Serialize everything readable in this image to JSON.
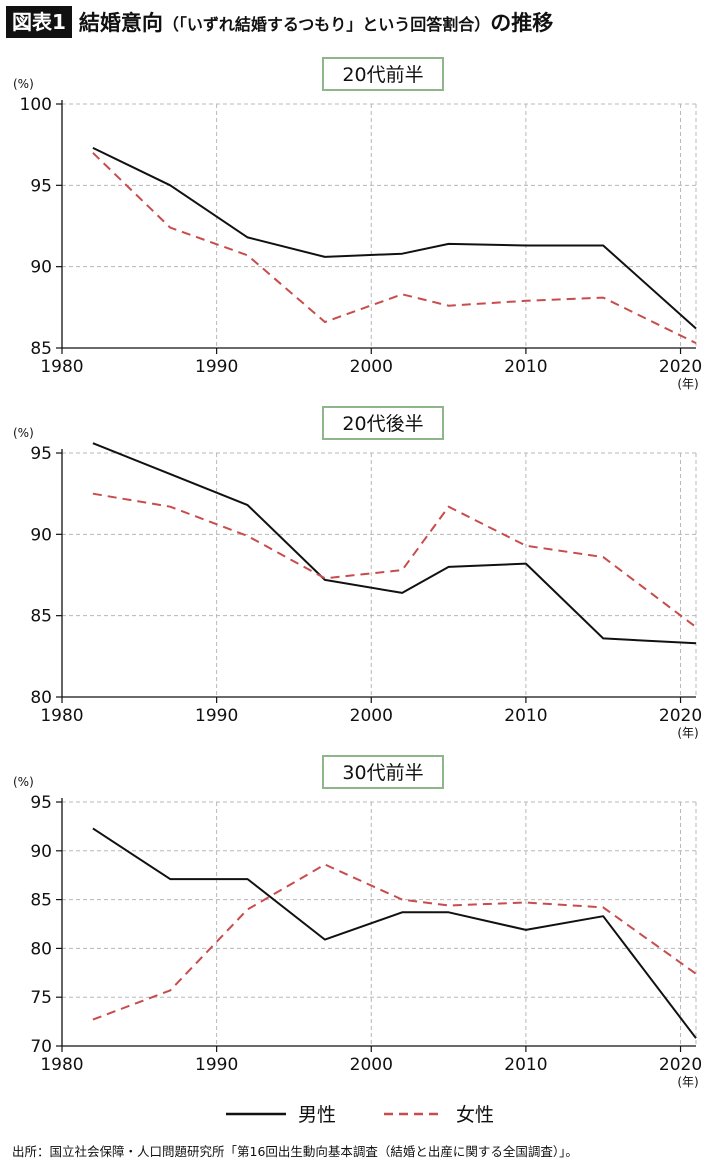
{
  "header": {
    "badge": "図表1",
    "title": "結婚意向",
    "subtitle": "（「いずれ結婚するつもり」という回答割合）",
    "title_suffix": "の推移"
  },
  "legend": {
    "male": "男性",
    "female": "女性"
  },
  "source": "出所：国立社会保障・人口問題研究所「第16回出生動向基本調査（結婚と出産に関する全国調査）」。",
  "colors": {
    "male": "#111111",
    "female": "#c84c4c",
    "grid": "#b8b8b8",
    "title_border": "#8fb58a"
  },
  "chart_data": [
    {
      "type": "line",
      "title": "20代前半",
      "y_unit": "(%)",
      "x_unit": "(年)",
      "xlim": [
        1980,
        2021
      ],
      "x_ticks": [
        1980,
        1990,
        2000,
        2010,
        2020
      ],
      "ylim": [
        85,
        100
      ],
      "y_ticks": [
        85,
        90,
        95,
        100
      ],
      "grid": true,
      "x": [
        1982,
        1987,
        1992,
        1997,
        2002,
        2005,
        2010,
        2015,
        2021
      ],
      "series": [
        {
          "name": "男性",
          "values": [
            97.3,
            95.0,
            91.8,
            90.6,
            90.8,
            91.4,
            91.3,
            91.3,
            86.2
          ]
        },
        {
          "name": "女性",
          "values": [
            97.0,
            92.4,
            90.7,
            86.6,
            88.3,
            87.6,
            87.9,
            88.1,
            85.3
          ]
        }
      ]
    },
    {
      "type": "line",
      "title": "20代後半",
      "y_unit": "(%)",
      "x_unit": "(年)",
      "xlim": [
        1980,
        2021
      ],
      "x_ticks": [
        1980,
        1990,
        2000,
        2010,
        2020
      ],
      "ylim": [
        80,
        95
      ],
      "y_ticks": [
        80,
        85,
        90,
        95
      ],
      "grid": true,
      "x": [
        1982,
        1987,
        1992,
        1997,
        2002,
        2005,
        2010,
        2015,
        2021
      ],
      "series": [
        {
          "name": "男性",
          "values": [
            95.6,
            93.7,
            91.8,
            87.2,
            86.4,
            88.0,
            88.2,
            83.6,
            83.3
          ]
        },
        {
          "name": "女性",
          "values": [
            92.5,
            91.7,
            89.9,
            87.3,
            87.8,
            91.7,
            89.3,
            88.6,
            84.3
          ]
        }
      ]
    },
    {
      "type": "line",
      "title": "30代前半",
      "y_unit": "(%)",
      "x_unit": "(年)",
      "xlim": [
        1980,
        2021
      ],
      "x_ticks": [
        1980,
        1990,
        2000,
        2010,
        2020
      ],
      "ylim": [
        70,
        95
      ],
      "y_ticks": [
        70,
        75,
        80,
        85,
        90,
        95
      ],
      "grid": true,
      "x": [
        1982,
        1987,
        1992,
        1997,
        2002,
        2005,
        2010,
        2015,
        2021
      ],
      "series": [
        {
          "name": "男性",
          "values": [
            92.3,
            87.1,
            87.1,
            80.9,
            83.7,
            83.7,
            81.9,
            83.3,
            70.8
          ]
        },
        {
          "name": "女性",
          "values": [
            72.7,
            75.7,
            84.0,
            88.6,
            85.0,
            84.4,
            84.7,
            84.2,
            77.4
          ]
        }
      ]
    }
  ]
}
